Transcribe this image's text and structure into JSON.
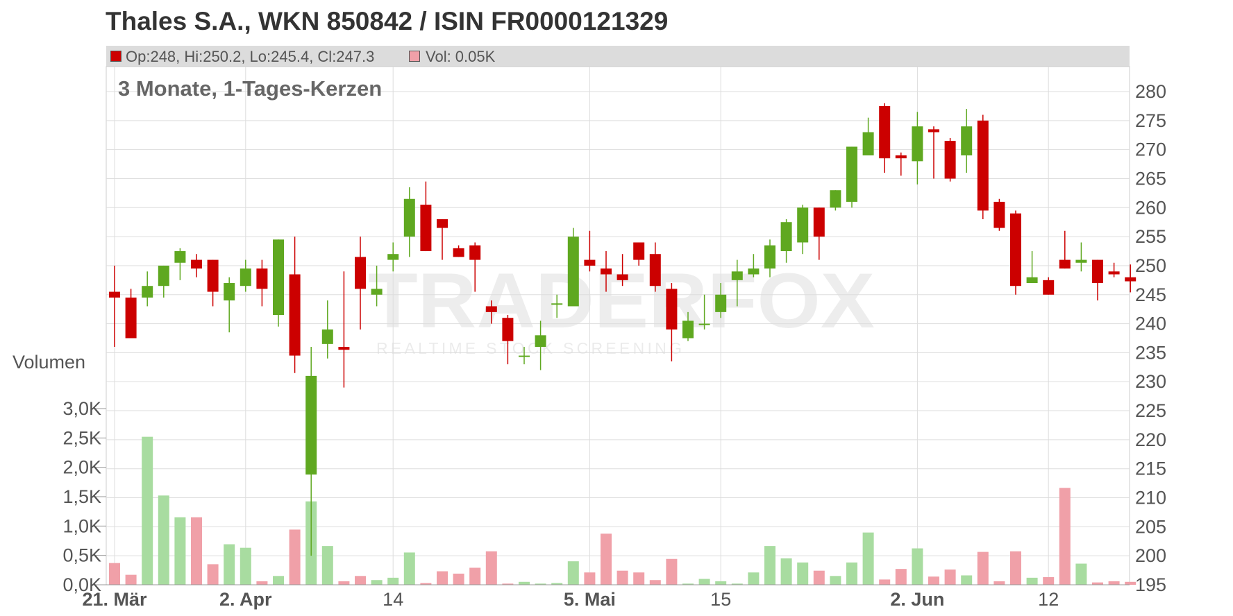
{
  "title": "Thales S.A., WKN 850842 / ISIN FR0000121329",
  "legend": {
    "ohlc_text": "Op:248, Hi:250.2, Lo:245.4, Cl:247.3",
    "vol_text": "Vol: 0.05K",
    "ohlc_color": "#cc0000",
    "vol_color": "#f0a0a8"
  },
  "subtitle": "3 Monate, 1-Tages-Kerzen",
  "volume_label": "Volumen",
  "watermark": {
    "brand": "TRADERFOX",
    "tagline": "REALTIME STOCK SCREENING"
  },
  "colors": {
    "up": "#5fa820",
    "down": "#cc0000",
    "up_vol": "#a8dca0",
    "down_vol": "#f0a0a8",
    "grid": "#dddddd"
  },
  "chart_data": {
    "type": "candlestick",
    "price_axis": {
      "ylim": [
        195,
        280
      ],
      "ticks": [
        195,
        200,
        205,
        210,
        215,
        220,
        225,
        230,
        235,
        240,
        245,
        250,
        255,
        260,
        265,
        270,
        275,
        280
      ]
    },
    "volume_axis": {
      "ylim": [
        0,
        3000
      ],
      "tick_values": [
        0,
        500,
        1000,
        1500,
        2000,
        2500,
        3000
      ],
      "tick_labels": [
        "0,0K",
        "0,5K",
        "1,0K",
        "1,5K",
        "2,0K",
        "2,5K",
        "3,0K"
      ]
    },
    "x_ticks": [
      {
        "index": 0,
        "label": "21. Mär",
        "bold": true
      },
      {
        "index": 8,
        "label": "2. Apr",
        "bold": true
      },
      {
        "index": 17,
        "label": "14",
        "bold": false
      },
      {
        "index": 29,
        "label": "5. Mai",
        "bold": true
      },
      {
        "index": 37,
        "label": "15",
        "bold": false
      },
      {
        "index": 49,
        "label": "2. Jun",
        "bold": true
      },
      {
        "index": 57,
        "label": "12",
        "bold": false
      }
    ],
    "candles": [
      {
        "o": 245.5,
        "h": 250,
        "l": 236,
        "c": 244.5,
        "v": 370
      },
      {
        "o": 244.5,
        "h": 246,
        "l": 237.5,
        "c": 237.5,
        "v": 170
      },
      {
        "o": 244.5,
        "h": 249,
        "l": 243,
        "c": 246.5,
        "v": 2520
      },
      {
        "o": 246.5,
        "h": 250,
        "l": 244.5,
        "c": 250,
        "v": 1520
      },
      {
        "o": 250.5,
        "h": 253,
        "l": 247.5,
        "c": 252.5,
        "v": 1150
      },
      {
        "o": 251,
        "h": 252,
        "l": 248,
        "c": 249.5,
        "v": 1150
      },
      {
        "o": 251,
        "h": 251,
        "l": 243,
        "c": 245.5,
        "v": 350
      },
      {
        "o": 244,
        "h": 248,
        "l": 238.5,
        "c": 247,
        "v": 690
      },
      {
        "o": 246.5,
        "h": 251,
        "l": 245.5,
        "c": 249.5,
        "v": 630
      },
      {
        "o": 249.5,
        "h": 251,
        "l": 243,
        "c": 246,
        "v": 60
      },
      {
        "o": 241.5,
        "h": 254.5,
        "l": 239.5,
        "c": 254.5,
        "v": 150
      },
      {
        "o": 248.5,
        "h": 255,
        "l": 231.5,
        "c": 234.5,
        "v": 940
      },
      {
        "o": 214,
        "h": 236,
        "l": 200,
        "c": 231,
        "v": 1420
      },
      {
        "o": 236.5,
        "h": 244,
        "l": 234,
        "c": 239,
        "v": 660
      },
      {
        "o": 236,
        "h": 249,
        "l": 229,
        "c": 235.5,
        "v": 60
      },
      {
        "o": 251.5,
        "h": 255,
        "l": 239,
        "c": 246,
        "v": 150
      },
      {
        "o": 245,
        "h": 250,
        "l": 243,
        "c": 246,
        "v": 80
      },
      {
        "o": 251,
        "h": 254,
        "l": 249,
        "c": 252,
        "v": 120
      },
      {
        "o": 255,
        "h": 263.5,
        "l": 251.5,
        "c": 261.5,
        "v": 550
      },
      {
        "o": 260.5,
        "h": 264.5,
        "l": 252.5,
        "c": 252.5,
        "v": 30
      },
      {
        "o": 258,
        "h": 258,
        "l": 251,
        "c": 256.5,
        "v": 230
      },
      {
        "o": 253,
        "h": 253.5,
        "l": 251.5,
        "c": 251.5,
        "v": 190
      },
      {
        "o": 253.5,
        "h": 254,
        "l": 245.5,
        "c": 251,
        "v": 290
      },
      {
        "o": 243,
        "h": 244,
        "l": 240,
        "c": 242,
        "v": 570
      },
      {
        "o": 241,
        "h": 241.5,
        "l": 233,
        "c": 237,
        "v": 20
      },
      {
        "o": 234.5,
        "h": 236,
        "l": 233,
        "c": 234.5,
        "v": 50
      },
      {
        "o": 236,
        "h": 240.5,
        "l": 232,
        "c": 238,
        "v": 20
      },
      {
        "o": 243.5,
        "h": 245,
        "l": 241,
        "c": 243.5,
        "v": 30
      },
      {
        "o": 243,
        "h": 256.5,
        "l": 243,
        "c": 255,
        "v": 400
      },
      {
        "o": 251,
        "h": 256,
        "l": 249,
        "c": 250,
        "v": 210
      },
      {
        "o": 249.5,
        "h": 252.5,
        "l": 245.5,
        "c": 248.5,
        "v": 870
      },
      {
        "o": 248.5,
        "h": 252,
        "l": 246.5,
        "c": 247.5,
        "v": 240
      },
      {
        "o": 254,
        "h": 254,
        "l": 250,
        "c": 251,
        "v": 210
      },
      {
        "o": 252,
        "h": 254,
        "l": 245.5,
        "c": 246.5,
        "v": 80
      },
      {
        "o": 246,
        "h": 247,
        "l": 233.5,
        "c": 239,
        "v": 440
      },
      {
        "o": 237.5,
        "h": 242,
        "l": 237,
        "c": 240.5,
        "v": 20
      },
      {
        "o": 240,
        "h": 245,
        "l": 239,
        "c": 240,
        "v": 100
      },
      {
        "o": 242,
        "h": 247,
        "l": 241,
        "c": 245,
        "v": 60
      },
      {
        "o": 247.5,
        "h": 251,
        "l": 243,
        "c": 249,
        "v": 20
      },
      {
        "o": 248.5,
        "h": 252,
        "l": 248,
        "c": 249.5,
        "v": 210
      },
      {
        "o": 249.5,
        "h": 254.5,
        "l": 248,
        "c": 253.5,
        "v": 660
      },
      {
        "o": 252.5,
        "h": 258,
        "l": 250.5,
        "c": 257.5,
        "v": 450
      },
      {
        "o": 254,
        "h": 260.5,
        "l": 252,
        "c": 260,
        "v": 380
      },
      {
        "o": 260,
        "h": 260,
        "l": 251,
        "c": 255,
        "v": 240
      },
      {
        "o": 260,
        "h": 263,
        "l": 259.5,
        "c": 263,
        "v": 150
      },
      {
        "o": 261,
        "h": 270.5,
        "l": 260,
        "c": 270.5,
        "v": 380
      },
      {
        "o": 269,
        "h": 275.5,
        "l": 269,
        "c": 273,
        "v": 890
      },
      {
        "o": 277.5,
        "h": 278,
        "l": 266,
        "c": 268.5,
        "v": 90
      },
      {
        "o": 269,
        "h": 269.5,
        "l": 265.5,
        "c": 268.5,
        "v": 270
      },
      {
        "o": 268,
        "h": 276.5,
        "l": 264,
        "c": 274,
        "v": 620
      },
      {
        "o": 273.5,
        "h": 274,
        "l": 265,
        "c": 273,
        "v": 140
      },
      {
        "o": 271.5,
        "h": 272,
        "l": 264.5,
        "c": 265,
        "v": 260
      },
      {
        "o": 269,
        "h": 277,
        "l": 266,
        "c": 274,
        "v": 160
      },
      {
        "o": 275,
        "h": 276,
        "l": 258,
        "c": 259.5,
        "v": 560
      },
      {
        "o": 261,
        "h": 261.5,
        "l": 256,
        "c": 256.5,
        "v": 60
      },
      {
        "o": 259,
        "h": 259.5,
        "l": 245,
        "c": 246.5,
        "v": 570
      },
      {
        "o": 247,
        "h": 252.5,
        "l": 247,
        "c": 248,
        "v": 120
      },
      {
        "o": 247.5,
        "h": 248,
        "l": 245,
        "c": 245,
        "v": 130
      },
      {
        "o": 251,
        "h": 256,
        "l": 249.5,
        "c": 249.5,
        "v": 1650
      },
      {
        "o": 250.5,
        "h": 254,
        "l": 249,
        "c": 251,
        "v": 360
      },
      {
        "o": 251,
        "h": 251,
        "l": 244,
        "c": 247,
        "v": 40
      },
      {
        "o": 249,
        "h": 250.5,
        "l": 248,
        "c": 248.5,
        "v": 60
      },
      {
        "o": 248,
        "h": 250.2,
        "l": 245.4,
        "c": 247.3,
        "v": 50
      }
    ]
  }
}
